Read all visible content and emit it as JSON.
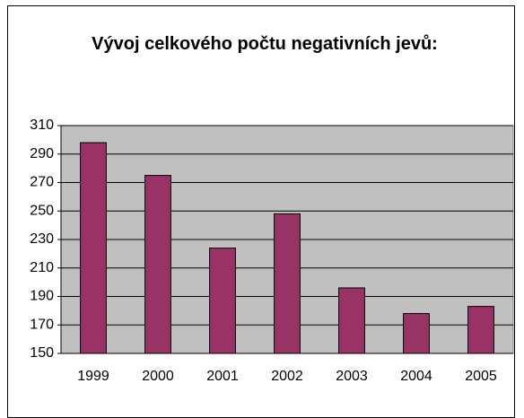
{
  "chart_data": {
    "type": "bar",
    "title": "Vývoj celkového počtu negativních jevů:",
    "categories": [
      "1999",
      "2000",
      "2001",
      "2002",
      "2003",
      "2004",
      "2005"
    ],
    "values": [
      298,
      275,
      224,
      248,
      196,
      178,
      183
    ],
    "color": "#993366",
    "ylim": [
      150,
      310
    ],
    "yticks": [
      150,
      170,
      190,
      210,
      230,
      250,
      270,
      290,
      310
    ],
    "grid": true
  }
}
